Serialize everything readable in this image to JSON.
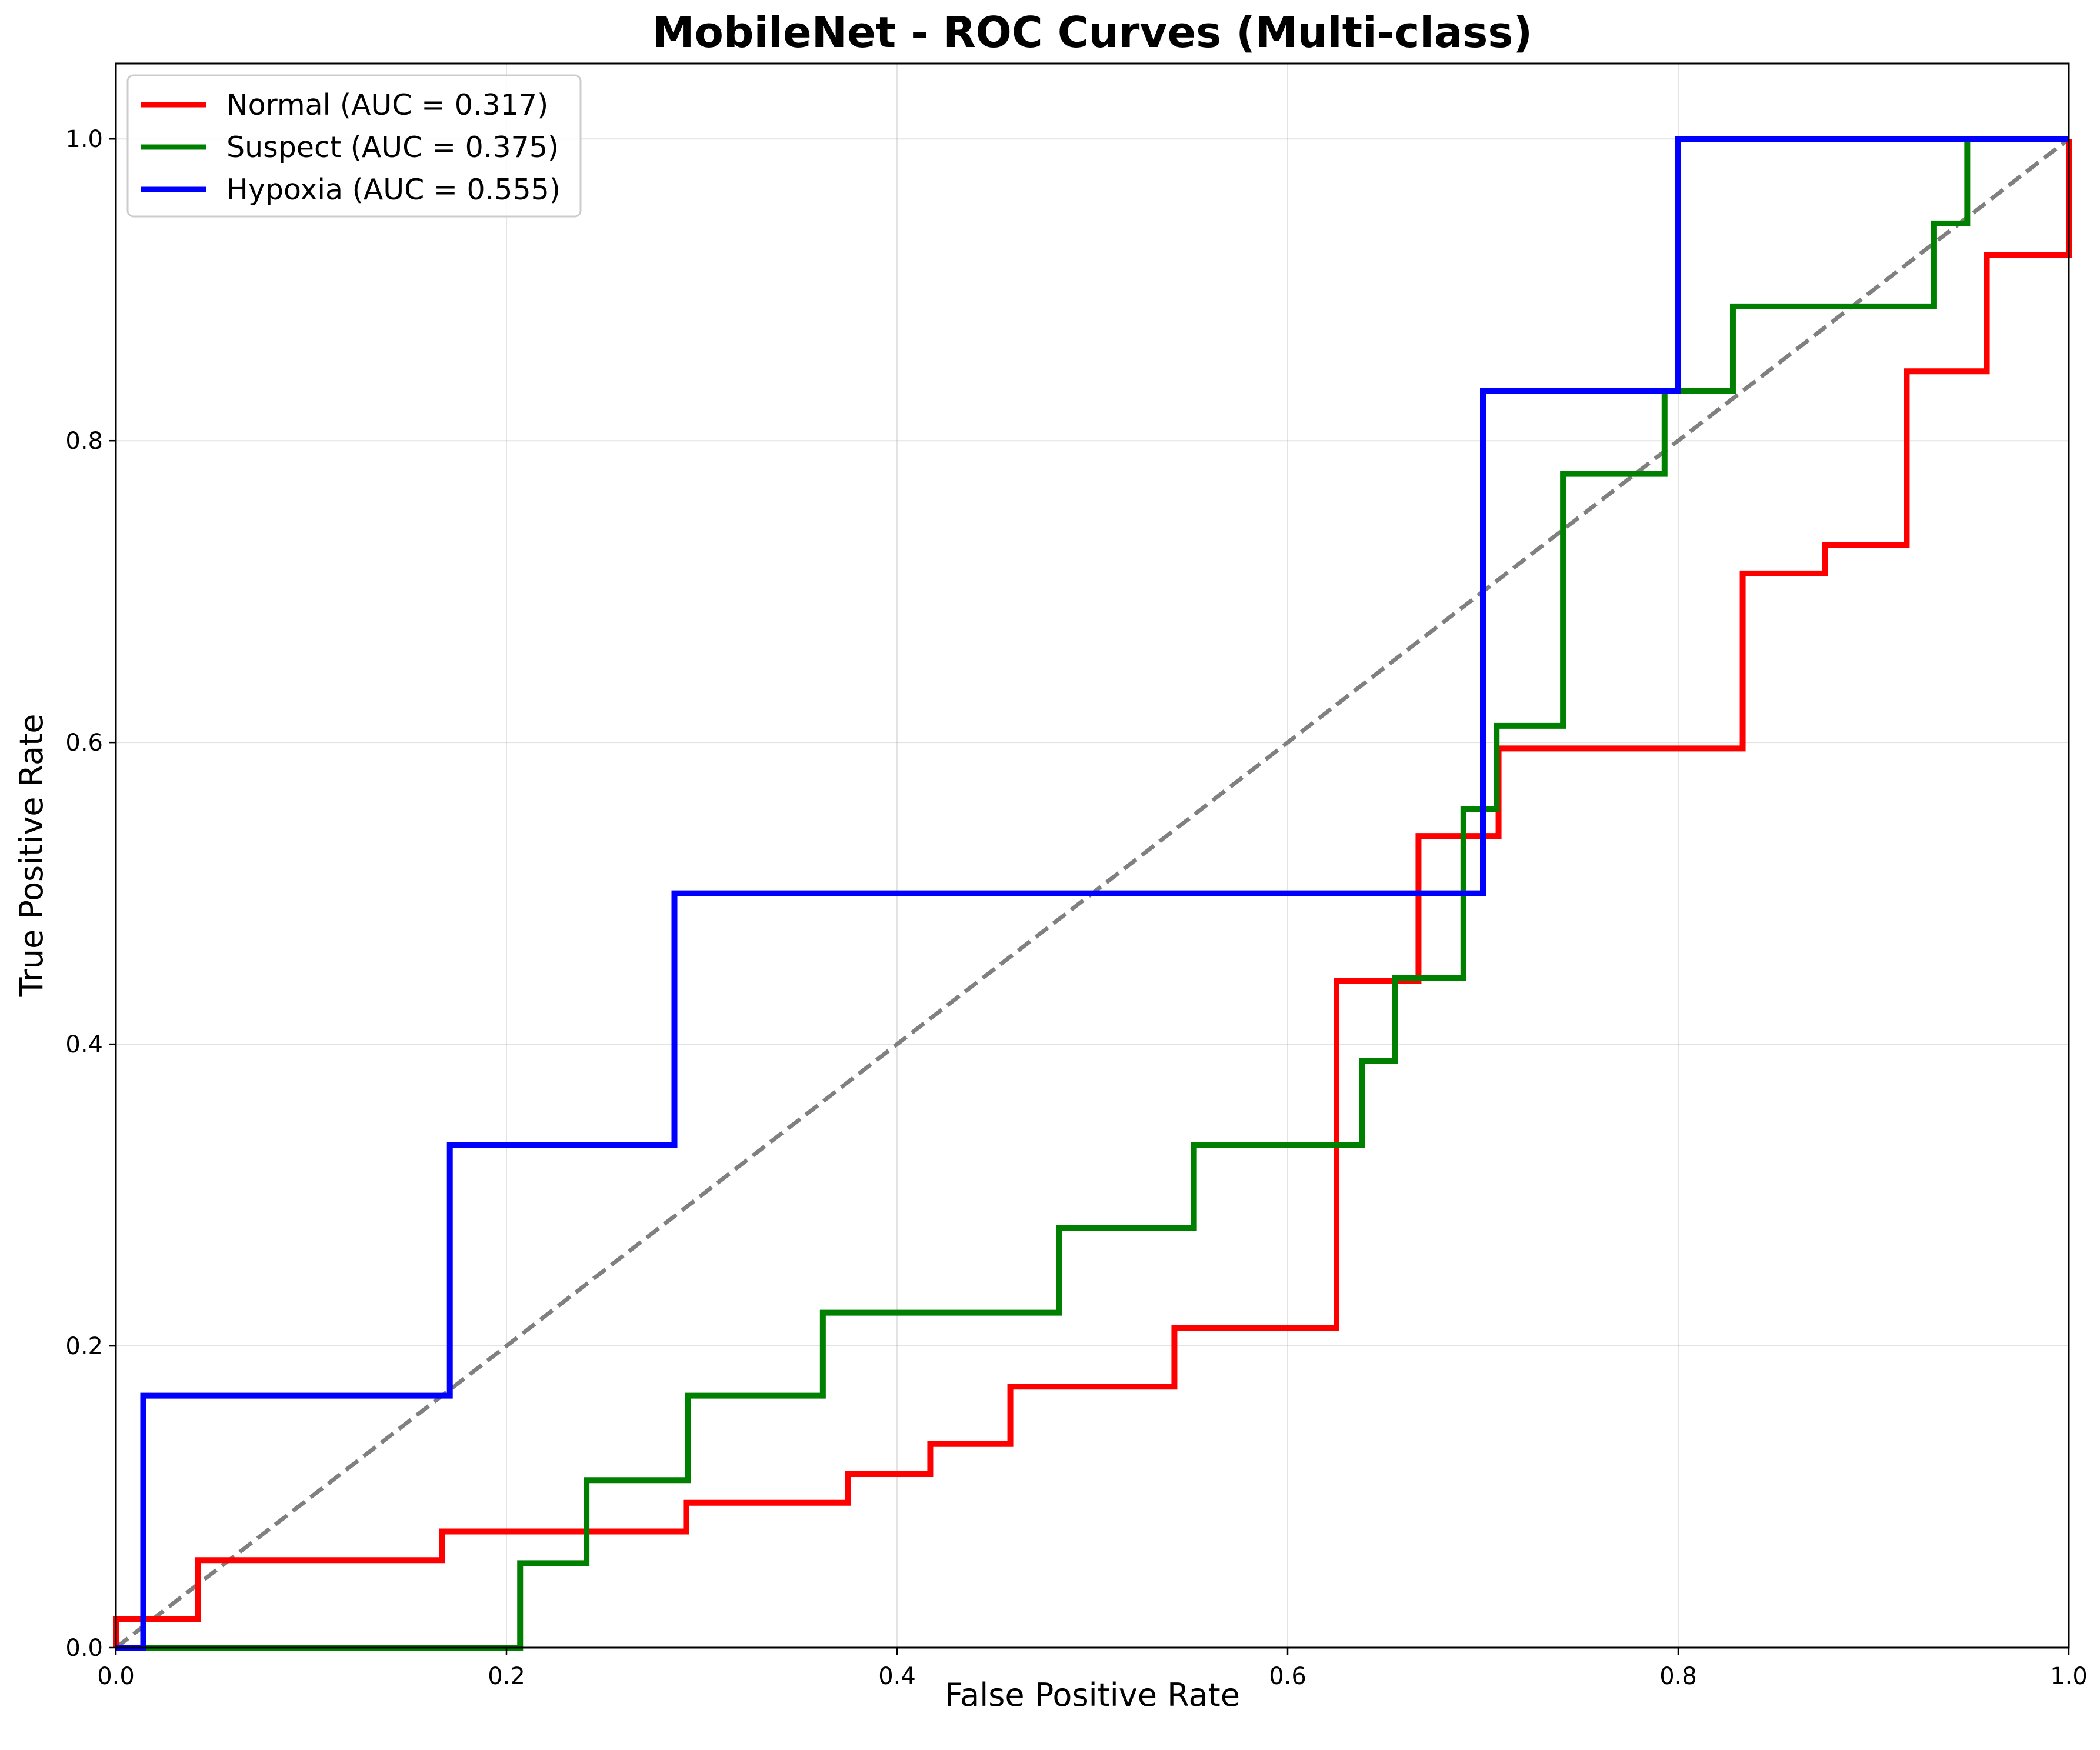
{
  "chart_data": {
    "type": "line",
    "title": "MobileNet - ROC Curves (Multi-class)",
    "xlabel": "False Positive Rate",
    "ylabel": "True Positive Rate",
    "xlim": [
      0,
      1
    ],
    "ylim": [
      0,
      1.05
    ],
    "xticks": [
      "0.0",
      "0.2",
      "0.4",
      "0.6",
      "0.8",
      "1.0"
    ],
    "yticks": [
      "0.0",
      "0.2",
      "0.4",
      "0.6",
      "0.8",
      "1.0"
    ],
    "grid": true,
    "legend_position": "top-left",
    "series": [
      {
        "name": "Normal (AUC = 0.317)",
        "color": "#ff0000",
        "points": [
          [
            0,
            0
          ],
          [
            0,
            0.019
          ],
          [
            0.042,
            0.019
          ],
          [
            0.042,
            0.058
          ],
          [
            0.167,
            0.058
          ],
          [
            0.167,
            0.077
          ],
          [
            0.292,
            0.077
          ],
          [
            0.292,
            0.096
          ],
          [
            0.375,
            0.096
          ],
          [
            0.375,
            0.115
          ],
          [
            0.417,
            0.115
          ],
          [
            0.417,
            0.135
          ],
          [
            0.458,
            0.135
          ],
          [
            0.458,
            0.173
          ],
          [
            0.542,
            0.173
          ],
          [
            0.542,
            0.212
          ],
          [
            0.625,
            0.212
          ],
          [
            0.625,
            0.442
          ],
          [
            0.667,
            0.442
          ],
          [
            0.667,
            0.538
          ],
          [
            0.708,
            0.538
          ],
          [
            0.708,
            0.596
          ],
          [
            0.833,
            0.596
          ],
          [
            0.833,
            0.712
          ],
          [
            0.875,
            0.712
          ],
          [
            0.875,
            0.731
          ],
          [
            0.917,
            0.731
          ],
          [
            0.917,
            0.846
          ],
          [
            0.958,
            0.846
          ],
          [
            0.958,
            0.923
          ],
          [
            1,
            0.923
          ],
          [
            1,
            1
          ]
        ]
      },
      {
        "name": "Suspect (AUC = 0.375)",
        "color": "#008000",
        "points": [
          [
            0,
            0
          ],
          [
            0.207,
            0
          ],
          [
            0.207,
            0.056
          ],
          [
            0.241,
            0.056
          ],
          [
            0.241,
            0.111
          ],
          [
            0.293,
            0.111
          ],
          [
            0.293,
            0.167
          ],
          [
            0.362,
            0.167
          ],
          [
            0.362,
            0.222
          ],
          [
            0.483,
            0.222
          ],
          [
            0.483,
            0.278
          ],
          [
            0.552,
            0.278
          ],
          [
            0.552,
            0.333
          ],
          [
            0.638,
            0.333
          ],
          [
            0.638,
            0.389
          ],
          [
            0.655,
            0.389
          ],
          [
            0.655,
            0.444
          ],
          [
            0.69,
            0.444
          ],
          [
            0.69,
            0.556
          ],
          [
            0.707,
            0.556
          ],
          [
            0.707,
            0.611
          ],
          [
            0.741,
            0.611
          ],
          [
            0.741,
            0.778
          ],
          [
            0.793,
            0.778
          ],
          [
            0.793,
            0.833
          ],
          [
            0.828,
            0.833
          ],
          [
            0.828,
            0.889
          ],
          [
            0.931,
            0.889
          ],
          [
            0.931,
            0.944
          ],
          [
            0.948,
            0.944
          ],
          [
            0.948,
            1
          ],
          [
            1,
            1
          ]
        ]
      },
      {
        "name": "Hypoxia (AUC = 0.555)",
        "color": "#0000ff",
        "points": [
          [
            0,
            0
          ],
          [
            0.014,
            0
          ],
          [
            0.014,
            0.167
          ],
          [
            0.171,
            0.167
          ],
          [
            0.171,
            0.333
          ],
          [
            0.286,
            0.333
          ],
          [
            0.286,
            0.5
          ],
          [
            0.7,
            0.5
          ],
          [
            0.7,
            0.833
          ],
          [
            0.8,
            0.833
          ],
          [
            0.8,
            1
          ],
          [
            1,
            1
          ]
        ]
      }
    ],
    "reference_line": {
      "color": "#808080",
      "points": [
        [
          0,
          0
        ],
        [
          1,
          1
        ]
      ],
      "style": "dashed"
    }
  }
}
